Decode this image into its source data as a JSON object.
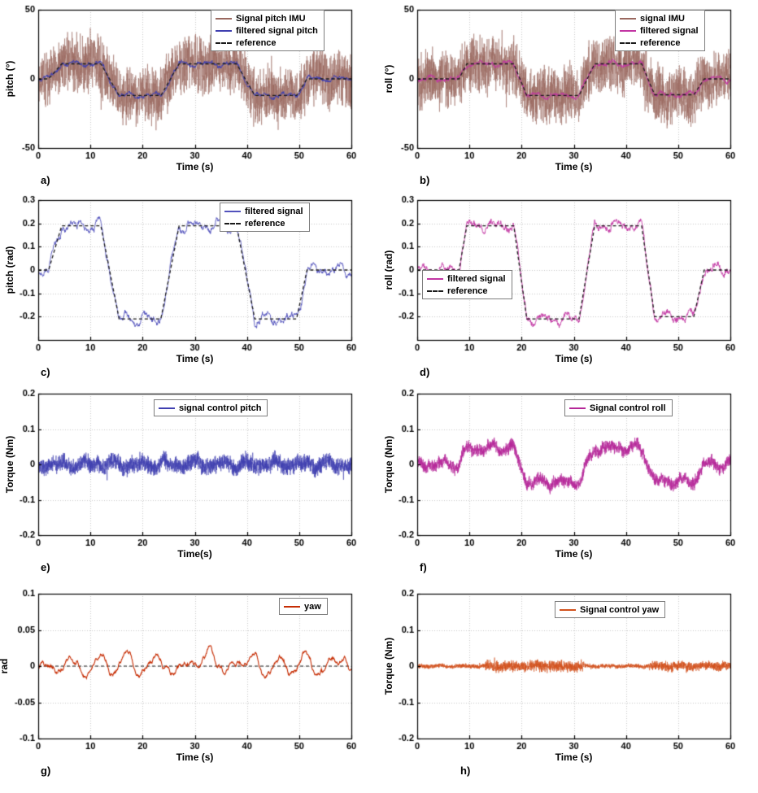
{
  "waveforms": {
    "pitch_rad": [
      [
        0,
        0
      ],
      [
        2,
        0
      ],
      [
        4.5,
        0.19
      ],
      [
        12,
        0.19
      ],
      [
        15.5,
        -0.21
      ],
      [
        23.5,
        -0.21
      ],
      [
        27,
        0.19
      ],
      [
        38,
        0.19
      ],
      [
        41.5,
        -0.21
      ],
      [
        49.5,
        -0.21
      ],
      [
        51.5,
        0
      ],
      [
        60,
        0
      ]
    ],
    "roll_rad": [
      [
        0,
        0
      ],
      [
        8,
        0
      ],
      [
        9.5,
        0.19
      ],
      [
        18.5,
        0.19
      ],
      [
        21,
        -0.21
      ],
      [
        31,
        -0.21
      ],
      [
        34,
        0.19
      ],
      [
        43,
        0.19
      ],
      [
        45.5,
        -0.2
      ],
      [
        53,
        -0.2
      ],
      [
        55,
        0
      ],
      [
        60,
        0
      ]
    ],
    "zero": [
      [
        0,
        0
      ],
      [
        60,
        0
      ]
    ]
  },
  "chart_data": [
    {
      "id": "a",
      "panel_label": "a)",
      "type": "line",
      "xlabel": "Time (s)",
      "ylabel": "pitch (°)",
      "xlim": [
        0,
        60
      ],
      "ylim": [
        -50,
        50
      ],
      "xticks": [
        0,
        10,
        20,
        30,
        40,
        50,
        60
      ],
      "yticks": [
        -50,
        0,
        50
      ],
      "grid": true,
      "legend": {
        "fx": 0.55,
        "fy": 0.0,
        "entries": [
          {
            "label": "Signal pitch IMU",
            "color": "#9a685f",
            "dash": false
          },
          {
            "label": "filtered signal pitch",
            "color": "#3f3fb0",
            "dash": false
          },
          {
            "label": "reference",
            "color": "#1a1a1a",
            "dash": true
          }
        ]
      },
      "series": [
        {
          "role": "raw-imu-signal",
          "color": "#9a685f",
          "width": 0.55,
          "waveform": "pitch_rad",
          "scale": 57.3,
          "smooth": 3,
          "fast": 24,
          "dt": 0.025,
          "seed": 101
        },
        {
          "role": "filtered-signal",
          "color": "#3f3fb0",
          "width": 0.9,
          "waveform": "pitch_rad",
          "scale": 57.3,
          "smooth": 2.2,
          "fast": 1.1,
          "dt": 0.04,
          "seed": 102
        },
        {
          "role": "reference",
          "color": "#1a1a1a",
          "width": 1.3,
          "dash": [
            4,
            3
          ],
          "waveform": "pitch_rad",
          "scale": 57.3,
          "smooth": 0,
          "fast": 0,
          "dt": 0.2,
          "seed": 0
        }
      ]
    },
    {
      "id": "b",
      "panel_label": "b)",
      "type": "line",
      "xlabel": "Time (s)",
      "ylabel": "roll (°)",
      "xlim": [
        0,
        60
      ],
      "ylim": [
        -50,
        50
      ],
      "xticks": [
        0,
        10,
        20,
        30,
        40,
        50,
        60
      ],
      "yticks": [
        -50,
        0,
        50
      ],
      "grid": true,
      "legend": {
        "fx": 0.63,
        "fy": 0.0,
        "entries": [
          {
            "label": "signal IMU",
            "color": "#9a685f",
            "dash": false
          },
          {
            "label": "filtered signal",
            "color": "#c235a3",
            "dash": false
          },
          {
            "label": "reference",
            "color": "#1a1a1a",
            "dash": true
          }
        ]
      },
      "series": [
        {
          "role": "raw-imu-signal",
          "color": "#9a685f",
          "width": 0.55,
          "waveform": "roll_rad",
          "scale": 57.3,
          "smooth": 3,
          "fast": 24,
          "dt": 0.025,
          "seed": 201
        },
        {
          "role": "filtered-signal",
          "color": "#c235a3",
          "width": 0.9,
          "waveform": "roll_rad",
          "scale": 57.3,
          "smooth": 2.2,
          "fast": 1.1,
          "dt": 0.04,
          "seed": 202
        },
        {
          "role": "reference",
          "color": "#1a1a1a",
          "width": 1.3,
          "dash": [
            4,
            3
          ],
          "waveform": "roll_rad",
          "scale": 57.3,
          "smooth": 0,
          "fast": 0,
          "dt": 0.2,
          "seed": 0
        }
      ]
    },
    {
      "id": "c",
      "panel_label": "c)",
      "type": "line",
      "xlabel": "Time (s)",
      "ylabel": "pitch (rad)",
      "xlim": [
        0,
        60
      ],
      "ylim": [
        -0.3,
        0.3
      ],
      "xticks": [
        0,
        10,
        20,
        30,
        40,
        50,
        60
      ],
      "yticks": [
        -0.2,
        -0.1,
        0,
        0.1,
        0.2,
        0.3
      ],
      "grid": true,
      "legend": {
        "fx": 0.58,
        "fy": 0.02,
        "entries": [
          {
            "label": "filtered signal",
            "color": "#5252bc",
            "dash": false
          },
          {
            "label": "reference",
            "color": "#1a1a1a",
            "dash": true
          }
        ]
      },
      "series": [
        {
          "role": "filtered-signal",
          "color": "#5252bc",
          "width": 0.9,
          "waveform": "pitch_rad",
          "scale": 1,
          "smooth": 0.03,
          "fast": 0.009,
          "dt": 0.05,
          "seed": 301
        },
        {
          "role": "reference",
          "color": "#1a1a1a",
          "width": 1.3,
          "dash": [
            4,
            3
          ],
          "waveform": "pitch_rad",
          "scale": 1,
          "smooth": 0,
          "fast": 0,
          "dt": 0.2,
          "seed": 0
        }
      ]
    },
    {
      "id": "d",
      "panel_label": "d)",
      "type": "line",
      "xlabel": "Time (s)",
      "ylabel": "roll (rad)",
      "xlim": [
        0,
        60
      ],
      "ylim": [
        -0.3,
        0.3
      ],
      "xticks": [
        0,
        10,
        20,
        30,
        40,
        50,
        60
      ],
      "yticks": [
        -0.2,
        -0.1,
        0,
        0.1,
        0.2,
        0.3
      ],
      "grid": true,
      "legend": {
        "fx": 0.015,
        "fy": 0.5,
        "entries": [
          {
            "label": "filtered signal",
            "color": "#c235a3",
            "dash": false
          },
          {
            "label": "reference",
            "color": "#1a1a1a",
            "dash": true
          }
        ]
      },
      "series": [
        {
          "role": "filtered-signal",
          "color": "#c235a3",
          "width": 0.9,
          "waveform": "roll_rad",
          "scale": 1,
          "smooth": 0.026,
          "fast": 0.011,
          "dt": 0.05,
          "seed": 401
        },
        {
          "role": "reference",
          "color": "#1a1a1a",
          "width": 1.3,
          "dash": [
            4,
            3
          ],
          "waveform": "roll_rad",
          "scale": 1,
          "smooth": 0,
          "fast": 0,
          "dt": 0.2,
          "seed": 0
        }
      ]
    },
    {
      "id": "e",
      "panel_label": "e)",
      "type": "line",
      "xlabel": "Time(s)",
      "ylabel": "Torque (Nm)",
      "xlim": [
        0,
        60
      ],
      "ylim": [
        -0.2,
        0.2
      ],
      "xticks": [
        0,
        10,
        20,
        30,
        40,
        50,
        60
      ],
      "yticks": [
        -0.2,
        -0.1,
        0,
        0.1,
        0.2
      ],
      "grid": true,
      "legend": {
        "fx": 0.37,
        "fy": 0.04,
        "entries": [
          {
            "label": "signal control pitch",
            "color": "#3f3fb0",
            "dash": false
          }
        ]
      },
      "series": [
        {
          "role": "control-signal",
          "color": "#3f3fb0",
          "width": 0.6,
          "waveform": "zero",
          "scale": 1,
          "smooth": 0.012,
          "fast": 0.028,
          "dt": 0.02,
          "seed": 501
        }
      ]
    },
    {
      "id": "f",
      "panel_label": "f)",
      "type": "line",
      "xlabel": "Time (s)",
      "ylabel": "Torque (Nm)",
      "xlim": [
        0,
        60
      ],
      "ylim": [
        -0.2,
        0.2
      ],
      "xticks": [
        0,
        10,
        20,
        30,
        40,
        50,
        60
      ],
      "yticks": [
        -0.2,
        -0.1,
        0,
        0.1,
        0.2
      ],
      "grid": true,
      "legend": {
        "fx": 0.47,
        "fy": 0.04,
        "entries": [
          {
            "label": "Signal control roll",
            "color": "#b52798",
            "dash": false
          }
        ]
      },
      "series": [
        {
          "role": "control-signal",
          "color": "#b52798",
          "width": 0.6,
          "waveform": "roll_rad",
          "scale": 0.24,
          "smooth": 0.013,
          "fast": 0.02,
          "dt": 0.02,
          "seed": 601
        }
      ]
    },
    {
      "id": "g",
      "panel_label": "g)",
      "type": "line",
      "xlabel": "Time (s)",
      "ylabel": "rad",
      "ylabel_x": 5,
      "xlim": [
        0,
        60
      ],
      "ylim": [
        -0.1,
        0.1
      ],
      "xticks": [
        0,
        10,
        20,
        30,
        40,
        50,
        60
      ],
      "yticks": [
        -0.1,
        -0.05,
        0,
        0.05,
        0.1
      ],
      "grid": true,
      "legend": {
        "fx": 0.77,
        "fy": 0.03,
        "entries": [
          {
            "label": "yaw",
            "color": "#c62d04",
            "dash": false
          }
        ]
      },
      "series": [
        {
          "role": "zero-reference",
          "color": "#1a1a1a",
          "width": 1,
          "dash": [
            4,
            3
          ],
          "waveform": "zero",
          "scale": 1,
          "smooth": 0,
          "fast": 0,
          "dt": 0.5,
          "seed": 0
        },
        {
          "role": "yaw-signal",
          "color": "#c62d04",
          "width": 1.1,
          "waveform": "zero",
          "scale": 1,
          "smooth": 0.007,
          "fast": 0.0012,
          "dt": 0.05,
          "seed": 701,
          "bumps": [
            [
              3,
              -0.006,
              1
            ],
            [
              6,
              0.008,
              1
            ],
            [
              9,
              -0.009,
              1.2
            ],
            [
              12,
              0.012,
              1
            ],
            [
              14.5,
              -0.008,
              0.8
            ],
            [
              17,
              0.017,
              1.1
            ],
            [
              19.5,
              -0.01,
              0.9
            ],
            [
              23,
              0.014,
              1
            ],
            [
              26,
              -0.012,
              1
            ],
            [
              29,
              0.01,
              0.9
            ],
            [
              33,
              0.03,
              0.9
            ],
            [
              36,
              -0.01,
              0.8
            ],
            [
              38.5,
              0.008,
              0.9
            ],
            [
              41,
              0.014,
              1
            ],
            [
              43.5,
              -0.012,
              0.9
            ],
            [
              46,
              0.008,
              0.8
            ],
            [
              48.5,
              -0.008,
              0.8
            ],
            [
              51,
              0.016,
              1
            ],
            [
              53.5,
              -0.01,
              0.9
            ],
            [
              56,
              0.006,
              0.9
            ],
            [
              58.5,
              0.013,
              0.8
            ]
          ]
        }
      ]
    },
    {
      "id": "h",
      "panel_label": "h)",
      "panel_x": 100,
      "type": "line",
      "xlabel": "Time (s)",
      "ylabel": "Torque (Nm)",
      "xlim": [
        0,
        60
      ],
      "ylim": [
        -0.2,
        0.2
      ],
      "xticks": [
        0,
        10,
        20,
        30,
        40,
        50,
        60
      ],
      "yticks": [
        -0.2,
        -0.1,
        0,
        0.1,
        0.2
      ],
      "grid": true,
      "legend": {
        "fx": 0.44,
        "fy": 0.05,
        "entries": [
          {
            "label": "Signal control yaw",
            "color": "#d2511c",
            "dash": false
          }
        ]
      },
      "series": [
        {
          "role": "control-signal",
          "color": "#d2511c",
          "width": 0.6,
          "waveform": "zero",
          "scale": 1,
          "smooth": 0.002,
          "fast": 0.007,
          "dt": 0.02,
          "seed": 801,
          "bursts": [
            [
              13,
              32,
              2.6
            ],
            [
              44.5,
              60,
              2.2
            ]
          ]
        }
      ]
    }
  ]
}
